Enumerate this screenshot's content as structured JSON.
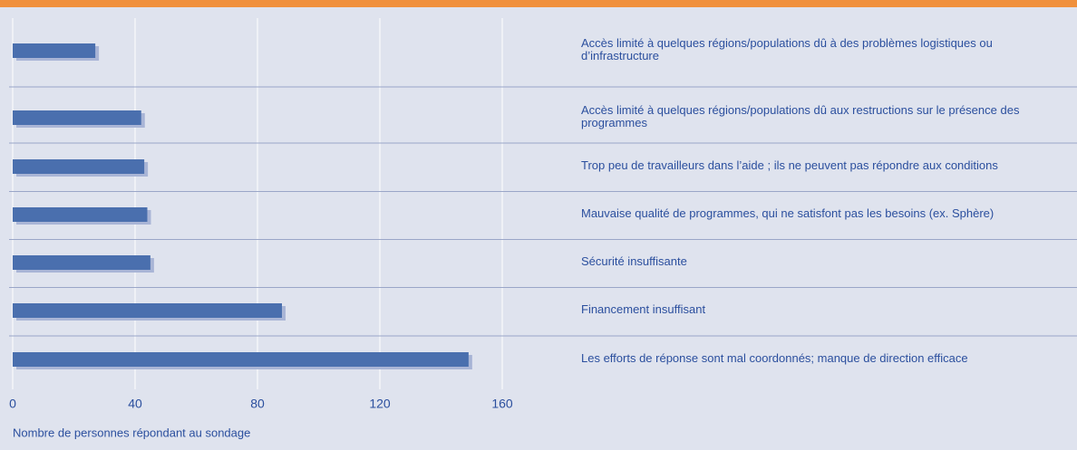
{
  "chart_data": {
    "type": "bar",
    "orientation": "horizontal",
    "categories": [
      "Accès limité à quelques régions/populations dû à des problèmes logistiques ou d’infrastructure",
      "Accès limité à quelques régions/populations dû aux restructions sur le présence des programmes",
      "Trop peu de travailleurs dans l’aide ; ils ne peuvent pas répondre aux conditions",
      "Mauvaise qualité de programmes, qui ne satisfont pas les besoins (ex. Sphère)",
      "Sécurité insuffisante",
      "Financement insuffisant",
      "Les efforts de réponse sont mal coordonnés; manque de direction efficace"
    ],
    "values": [
      27,
      42,
      43,
      44,
      45,
      88,
      149
    ],
    "color": "#4a6fae",
    "xlabel": "Nombre de personnes répondant au sondage",
    "xlim": [
      0,
      160
    ],
    "xticks": [
      0,
      40,
      80,
      120,
      160
    ],
    "grid": true
  }
}
